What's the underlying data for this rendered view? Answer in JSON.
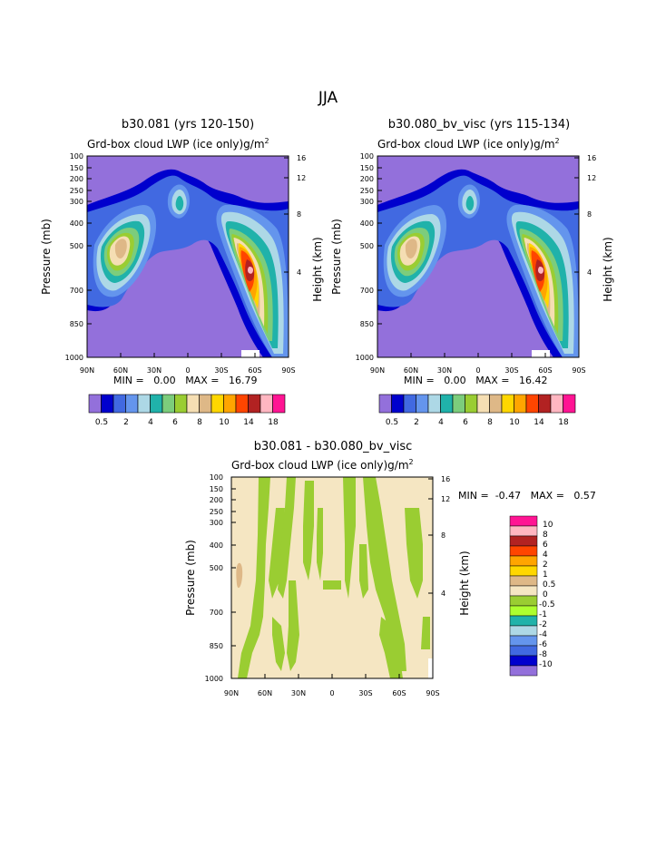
{
  "page": {
    "title": "JJA"
  },
  "palette": {
    "ctrl": [
      "#9370DB",
      "#0000CD",
      "#4169E1",
      "#6495ED",
      "#ADD8E6",
      "#20B2AA",
      "#7CCD7C",
      "#9ACD32",
      "#F5DEB3",
      "#DEB887",
      "#FFD700",
      "#FFA500",
      "#FF4500",
      "#B22222",
      "#FFB6C1",
      "#FF1493"
    ],
    "diff": [
      "#FF1493",
      "#FFB6C1",
      "#B22222",
      "#FF4500",
      "#FFA500",
      "#FFD700",
      "#DEB887",
      "#F5E6C2",
      "#9ACD32",
      "#ADFF2F",
      "#20B2AA",
      "#ADD8E6",
      "#6495ED",
      "#4169E1",
      "#0000CD",
      "#9370DB"
    ]
  },
  "chart_data": [
    {
      "type": "contour",
      "title": "b30.081 (yrs 120-150)",
      "subtitle": "Grd-box cloud LWP (ice only)",
      "units": "g/m",
      "units_sup": "2",
      "ylabel": "Pressure (mb)",
      "y2label": "Height (km)",
      "x_ticks": [
        "90N",
        "60N",
        "30N",
        "0",
        "30S",
        "60S",
        "90S"
      ],
      "y_ticks": [
        "100",
        "150",
        "200",
        "250",
        "300",
        "400",
        "500",
        "700",
        "850",
        "1000"
      ],
      "y2_ticks": [
        "16",
        "12",
        "8",
        "4"
      ],
      "min_label": "MIN =",
      "min_value": "0.00",
      "max_label": "MAX =",
      "max_value": "16.79",
      "colorbar_labels": [
        "0.5",
        "2",
        "4",
        "6",
        "8",
        "10",
        "14",
        "18"
      ]
    },
    {
      "type": "contour",
      "title": "b30.080_bv_visc (yrs 115-134)",
      "subtitle": "Grd-box cloud LWP (ice only)",
      "units": "g/m",
      "units_sup": "2",
      "ylabel": "Pressure (mb)",
      "y2label": "Height (km)",
      "x_ticks": [
        "90N",
        "60N",
        "30N",
        "0",
        "30S",
        "60S",
        "90S"
      ],
      "y_ticks": [
        "100",
        "150",
        "200",
        "250",
        "300",
        "400",
        "500",
        "700",
        "850",
        "1000"
      ],
      "y2_ticks": [
        "16",
        "12",
        "8",
        "4"
      ],
      "min_label": "MIN =",
      "min_value": "0.00",
      "max_label": "MAX =",
      "max_value": "16.42",
      "colorbar_labels": [
        "0.5",
        "2",
        "4",
        "6",
        "8",
        "10",
        "14",
        "18"
      ]
    },
    {
      "type": "contour",
      "title": "b30.081 - b30.080_bv_visc",
      "subtitle": "Grd-box cloud LWP (ice only)",
      "units": "g/m",
      "units_sup": "2",
      "ylabel": "Pressure (mb)",
      "y2label": "Height (km)",
      "x_ticks": [
        "90N",
        "60N",
        "30N",
        "0",
        "30S",
        "60S",
        "90S"
      ],
      "y_ticks": [
        "100",
        "150",
        "200",
        "250",
        "300",
        "400",
        "500",
        "700",
        "850",
        "1000"
      ],
      "y2_ticks": [
        "16",
        "12",
        "8",
        "4"
      ],
      "min_label": "MIN =",
      "min_value": "-0.47",
      "max_label": "MAX =",
      "max_value": "0.57",
      "colorbar_labels": [
        "10",
        "8",
        "6",
        "4",
        "2",
        "1",
        "0.5",
        "0",
        "-0.5",
        "-1",
        "-2",
        "-4",
        "-6",
        "-8",
        "-10"
      ]
    }
  ]
}
